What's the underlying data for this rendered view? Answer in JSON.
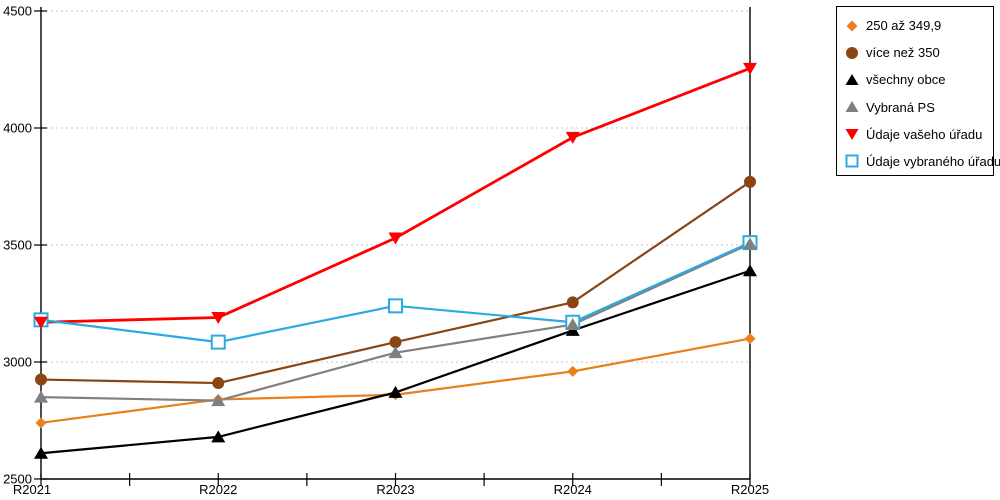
{
  "chart_data": {
    "type": "line",
    "title": "",
    "xlabel": "",
    "ylabel": "",
    "x": [
      "R2021",
      "R2022",
      "R2023",
      "R2024",
      "R2025"
    ],
    "ylim": [
      2500,
      4500
    ],
    "yticks": [
      2500,
      3000,
      3500,
      4000,
      4500
    ],
    "grid": "horizontal-dotted",
    "grid_color": "#c6c6c6",
    "axis_color": "#000000",
    "legend_position": "top-right",
    "series": [
      {
        "name": "250 až 349,9",
        "marker": "diamond",
        "color": "#e8801e",
        "values": [
          2740,
          2840,
          2860,
          2960,
          3100
        ]
      },
      {
        "name": "více než 350",
        "marker": "circle",
        "color": "#8b4513",
        "values": [
          2925,
          2910,
          3085,
          3255,
          3770
        ]
      },
      {
        "name": "všechny obce",
        "marker": "triangle-up",
        "color": "#000000",
        "values": [
          2610,
          2680,
          2870,
          3135,
          3390
        ]
      },
      {
        "name": "Vybraná PS",
        "marker": "triangle-up",
        "color": "#808080",
        "values": [
          2850,
          2835,
          3040,
          3160,
          3505
        ]
      },
      {
        "name": "Údaje vašeho úřadu",
        "marker": "triangle-down",
        "color": "#ff0000",
        "values": [
          3170,
          3190,
          3530,
          3960,
          4255
        ]
      },
      {
        "name": "Údaje vybraného úřadu",
        "marker": "square-open",
        "color": "#29abe2",
        "values": [
          3180,
          3085,
          3240,
          3170,
          3510
        ]
      }
    ]
  }
}
